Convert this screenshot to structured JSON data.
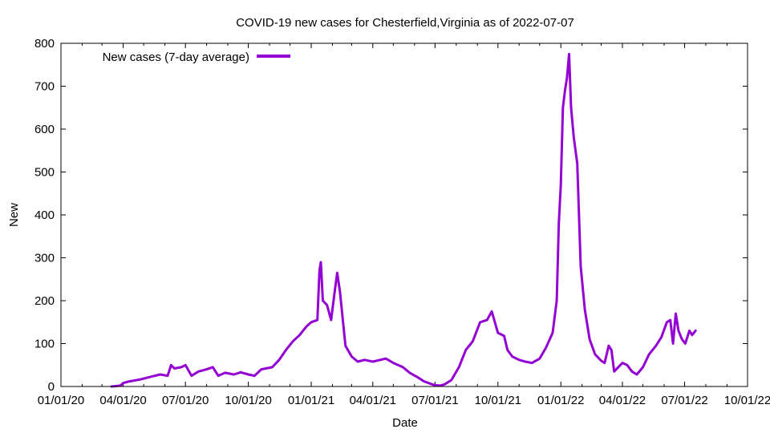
{
  "chart_data": {
    "type": "line",
    "title": "COVID-19 new cases for Chesterfield,Virginia as of 2022-07-07",
    "xlabel": "Date",
    "ylabel": "New",
    "x_tick_labels": [
      "01/01/20",
      "04/01/20",
      "07/01/20",
      "10/01/20",
      "01/01/21",
      "04/01/21",
      "07/01/21",
      "10/01/21",
      "01/01/22",
      "04/01/22",
      "07/01/22",
      "10/01/22"
    ],
    "y_tick_labels": [
      "0",
      "100",
      "200",
      "300",
      "400",
      "500",
      "600",
      "700",
      "800"
    ],
    "ylim": [
      0,
      800
    ],
    "xlim": [
      "2020-01-01",
      "2022-10-01"
    ],
    "grid": false,
    "legend_position": "top-left",
    "series": [
      {
        "name": "New cases (7-day average)",
        "color": "#9400d3",
        "points": [
          [
            "2020-03-15",
            0
          ],
          [
            "2020-03-28",
            2
          ],
          [
            "2020-04-01",
            8
          ],
          [
            "2020-04-10",
            12
          ],
          [
            "2020-04-25",
            16
          ],
          [
            "2020-05-10",
            22
          ],
          [
            "2020-05-25",
            28
          ],
          [
            "2020-06-05",
            25
          ],
          [
            "2020-06-10",
            50
          ],
          [
            "2020-06-15",
            42
          ],
          [
            "2020-06-25",
            45
          ],
          [
            "2020-07-01",
            50
          ],
          [
            "2020-07-10",
            25
          ],
          [
            "2020-07-20",
            35
          ],
          [
            "2020-08-01",
            40
          ],
          [
            "2020-08-10",
            45
          ],
          [
            "2020-08-18",
            25
          ],
          [
            "2020-08-28",
            32
          ],
          [
            "2020-09-10",
            28
          ],
          [
            "2020-09-20",
            33
          ],
          [
            "2020-10-01",
            28
          ],
          [
            "2020-10-10",
            25
          ],
          [
            "2020-10-20",
            40
          ],
          [
            "2020-11-05",
            45
          ],
          [
            "2020-11-15",
            62
          ],
          [
            "2020-11-25",
            85
          ],
          [
            "2020-12-05",
            105
          ],
          [
            "2020-12-15",
            120
          ],
          [
            "2020-12-25",
            140
          ],
          [
            "2021-01-01",
            150
          ],
          [
            "2021-01-10",
            155
          ],
          [
            "2021-01-13",
            270
          ],
          [
            "2021-01-15",
            290
          ],
          [
            "2021-01-18",
            200
          ],
          [
            "2021-01-24",
            190
          ],
          [
            "2021-01-30",
            155
          ],
          [
            "2021-02-05",
            230
          ],
          [
            "2021-02-08",
            265
          ],
          [
            "2021-02-12",
            220
          ],
          [
            "2021-02-20",
            95
          ],
          [
            "2021-03-01",
            70
          ],
          [
            "2021-03-10",
            58
          ],
          [
            "2021-03-20",
            62
          ],
          [
            "2021-04-01",
            58
          ],
          [
            "2021-04-20",
            65
          ],
          [
            "2021-05-01",
            55
          ],
          [
            "2021-05-15",
            45
          ],
          [
            "2021-05-25",
            32
          ],
          [
            "2021-06-05",
            22
          ],
          [
            "2021-06-15",
            12
          ],
          [
            "2021-06-25",
            6
          ],
          [
            "2021-07-01",
            3
          ],
          [
            "2021-07-08",
            2
          ],
          [
            "2021-07-15",
            5
          ],
          [
            "2021-07-25",
            15
          ],
          [
            "2021-08-05",
            45
          ],
          [
            "2021-08-15",
            85
          ],
          [
            "2021-08-25",
            105
          ],
          [
            "2021-09-05",
            150
          ],
          [
            "2021-09-15",
            155
          ],
          [
            "2021-09-22",
            175
          ],
          [
            "2021-10-01",
            125
          ],
          [
            "2021-10-10",
            118
          ],
          [
            "2021-10-15",
            85
          ],
          [
            "2021-10-22",
            70
          ],
          [
            "2021-11-01",
            62
          ],
          [
            "2021-11-10",
            58
          ],
          [
            "2021-11-20",
            55
          ],
          [
            "2021-12-01",
            65
          ],
          [
            "2021-12-10",
            90
          ],
          [
            "2021-12-20",
            125
          ],
          [
            "2021-12-26",
            200
          ],
          [
            "2021-12-29",
            380
          ],
          [
            "2022-01-01",
            470
          ],
          [
            "2022-01-04",
            650
          ],
          [
            "2022-01-07",
            690
          ],
          [
            "2022-01-10",
            720
          ],
          [
            "2022-01-13",
            775
          ],
          [
            "2022-01-16",
            650
          ],
          [
            "2022-01-20",
            580
          ],
          [
            "2022-01-25",
            520
          ],
          [
            "2022-01-30",
            280
          ],
          [
            "2022-02-05",
            180
          ],
          [
            "2022-02-12",
            110
          ],
          [
            "2022-02-20",
            75
          ],
          [
            "2022-03-01",
            60
          ],
          [
            "2022-03-06",
            55
          ],
          [
            "2022-03-12",
            95
          ],
          [
            "2022-03-16",
            85
          ],
          [
            "2022-03-20",
            35
          ],
          [
            "2022-04-01",
            55
          ],
          [
            "2022-04-08",
            50
          ],
          [
            "2022-04-15",
            35
          ],
          [
            "2022-04-22",
            28
          ],
          [
            "2022-05-01",
            45
          ],
          [
            "2022-05-10",
            75
          ],
          [
            "2022-05-20",
            95
          ],
          [
            "2022-05-28",
            115
          ],
          [
            "2022-06-05",
            150
          ],
          [
            "2022-06-10",
            155
          ],
          [
            "2022-06-14",
            100
          ],
          [
            "2022-06-18",
            170
          ],
          [
            "2022-06-22",
            130
          ],
          [
            "2022-06-27",
            110
          ],
          [
            "2022-07-02",
            100
          ],
          [
            "2022-07-08",
            130
          ],
          [
            "2022-07-12",
            120
          ],
          [
            "2022-07-17",
            130
          ]
        ]
      }
    ]
  }
}
